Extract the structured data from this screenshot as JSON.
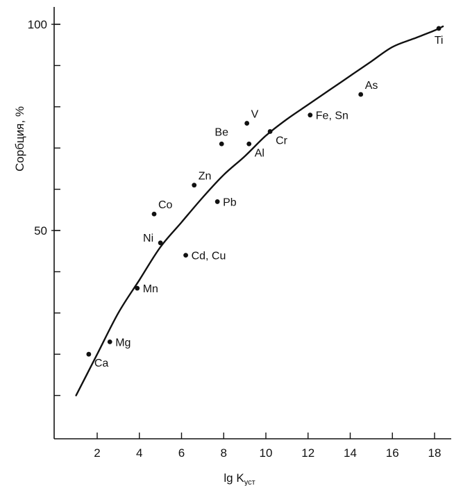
{
  "chart_data": {
    "type": "scatter",
    "xlabel": "lg K",
    "xlabel_sub": "уст",
    "ylabel": "Сорбция, %",
    "xlim": [
      0,
      19
    ],
    "ylim": [
      0,
      101
    ],
    "x_ticks": [
      2,
      4,
      6,
      8,
      10,
      12,
      14,
      16,
      18
    ],
    "y_tick_labels": [
      {
        "value": 50,
        "label": "50"
      },
      {
        "value": 100,
        "label": "100"
      }
    ],
    "y_minor_ticks": [
      10,
      20,
      30,
      40,
      50,
      60,
      70,
      80,
      90,
      100
    ],
    "grid": false,
    "colors": {
      "ink": "#111111",
      "background": "#ffffff"
    },
    "points": [
      {
        "label": "Ca",
        "x": 1.6,
        "y": 20,
        "label_pos": "below-right"
      },
      {
        "label": "Mg",
        "x": 2.6,
        "y": 23,
        "label_pos": "right"
      },
      {
        "label": "Mn",
        "x": 3.9,
        "y": 36,
        "label_pos": "right"
      },
      {
        "label": "Ni",
        "x": 5.0,
        "y": 47,
        "label_pos": "above-left"
      },
      {
        "label": "Co",
        "x": 4.7,
        "y": 54,
        "label_pos": "above-right"
      },
      {
        "label": "Cd, Cu",
        "x": 6.2,
        "y": 44,
        "label_pos": "right"
      },
      {
        "label": "Zn",
        "x": 6.6,
        "y": 61,
        "label_pos": "above-right"
      },
      {
        "label": "Pb",
        "x": 7.7,
        "y": 57,
        "label_pos": "right"
      },
      {
        "label": "Be",
        "x": 7.9,
        "y": 71,
        "label_pos": "above"
      },
      {
        "label": "V",
        "x": 9.1,
        "y": 76,
        "label_pos": "above-right"
      },
      {
        "label": "Al",
        "x": 9.2,
        "y": 71,
        "label_pos": "below-right"
      },
      {
        "label": "Cr",
        "x": 10.2,
        "y": 74,
        "label_pos": "below-right"
      },
      {
        "label": "Fe, Sn",
        "x": 12.1,
        "y": 78,
        "label_pos": "right"
      },
      {
        "label": "As",
        "x": 14.5,
        "y": 83,
        "label_pos": "above-right"
      },
      {
        "label": "Ti",
        "x": 18.2,
        "y": 99,
        "label_pos": "below"
      }
    ],
    "curve": {
      "x": [
        1.0,
        2.0,
        3.0,
        4.0,
        5.0,
        6.0,
        7.0,
        8.0,
        9.0,
        10.0,
        11.0,
        12.0,
        13.0,
        14.0,
        15.0,
        16.0,
        17.0,
        18.0,
        18.4
      ],
      "y": [
        10,
        20,
        30,
        38,
        46,
        52,
        58,
        63.5,
        68,
        73,
        77,
        80.5,
        84,
        87.5,
        91,
        94.5,
        96.5,
        98.5,
        99.5
      ]
    }
  }
}
